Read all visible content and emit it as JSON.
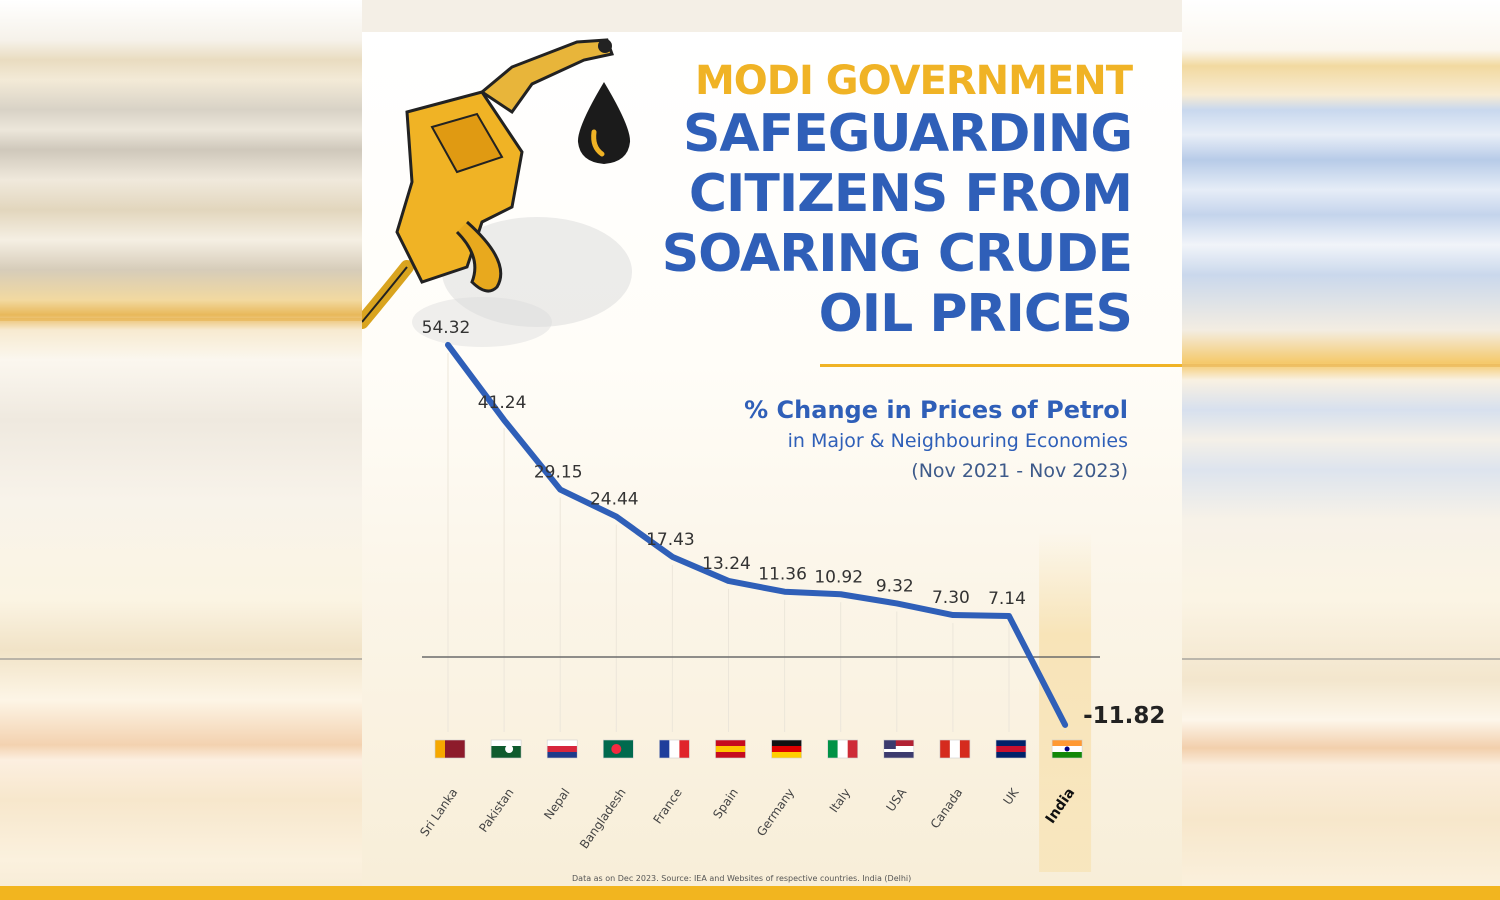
{
  "header": {
    "kicker": "MODI GOVERNMENT",
    "title_lines": [
      "SAFEGUARDING",
      "CITIZENS FROM",
      "SOARING CRUDE",
      "OIL PRICES"
    ]
  },
  "footnote": "Data as on Dec 2023. Source: IEA and Websites of respective countries. India (Delhi)",
  "colors": {
    "title_blue": "#2f5fb8",
    "accent_yellow": "#f0b325",
    "line": "#2f5fb8"
  },
  "icons": [
    "fuel-nozzle-icon",
    "oil-drop-icon"
  ],
  "chart_data": {
    "type": "line",
    "title": "% Change in Prices of Petrol",
    "subtitle": "in Major & Neighbouring Economies",
    "period": "(Nov 2021 - Nov 2023)",
    "categories": [
      "Sri Lanka",
      "Pakistan",
      "Nepal",
      "Bangladesh",
      "France",
      "Spain",
      "Germany",
      "Italy",
      "USA",
      "Canada",
      "UK",
      "India"
    ],
    "values": [
      54.32,
      41.24,
      29.15,
      24.44,
      17.43,
      13.24,
      11.36,
      10.92,
      9.32,
      7.3,
      7.14,
      -11.82
    ],
    "value_labels": [
      "54.32",
      "41.24",
      "29.15",
      "24.44",
      "17.43",
      "13.24",
      "11.36",
      "10.92",
      "9.32",
      "7.30",
      "7.14",
      "-11.82"
    ],
    "highlight_category": "India",
    "zero_line": true,
    "grid": false
  }
}
